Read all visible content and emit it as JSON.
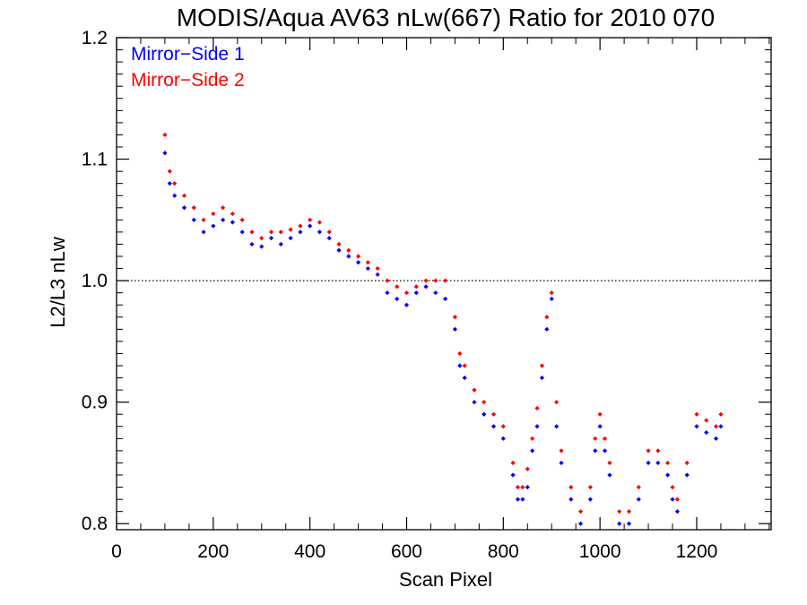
{
  "chart_data": {
    "type": "scatter",
    "title": "MODIS/Aqua AV63 nLw(667) Ratio for 2010 070",
    "xlabel": "Scan Pixel",
    "ylabel": "L2/L3 nLw",
    "xlim": [
      0,
      1354
    ],
    "ylim": [
      0.795,
      1.2
    ],
    "x_ticks": [
      "0",
      "200",
      "400",
      "600",
      "800",
      "1000",
      "1200"
    ],
    "x_tick_values": [
      0,
      200,
      400,
      600,
      800,
      1000,
      1200
    ],
    "y_ticks": [
      "0.8",
      "0.9",
      "1.0",
      "1.1",
      "1.2"
    ],
    "y_tick_values": [
      0.8,
      0.9,
      1.0,
      1.1,
      1.2
    ],
    "reference_line": 1.0,
    "legend_position": "top-left",
    "series": [
      {
        "name": "Mirror−Side 1",
        "color": "#0000ff",
        "x": [
          100,
          110,
          120,
          140,
          160,
          180,
          200,
          220,
          240,
          260,
          280,
          300,
          320,
          340,
          360,
          380,
          400,
          420,
          440,
          460,
          480,
          500,
          520,
          540,
          560,
          580,
          600,
          620,
          640,
          660,
          680,
          700,
          710,
          720,
          740,
          760,
          780,
          800,
          820,
          830,
          840,
          850,
          860,
          870,
          880,
          890,
          900,
          910,
          920,
          940,
          960,
          980,
          990,
          1000,
          1010,
          1020,
          1040,
          1060,
          1080,
          1100,
          1120,
          1140,
          1150,
          1160,
          1180,
          1200,
          1220,
          1240,
          1250
        ],
        "y": [
          1.105,
          1.08,
          1.07,
          1.06,
          1.05,
          1.04,
          1.045,
          1.05,
          1.048,
          1.04,
          1.03,
          1.028,
          1.035,
          1.03,
          1.035,
          1.04,
          1.045,
          1.04,
          1.035,
          1.025,
          1.02,
          1.015,
          1.01,
          1.005,
          0.99,
          0.985,
          0.98,
          0.99,
          0.995,
          0.99,
          0.985,
          0.96,
          0.93,
          0.92,
          0.9,
          0.89,
          0.88,
          0.87,
          0.84,
          0.82,
          0.82,
          0.83,
          0.86,
          0.88,
          0.92,
          0.96,
          0.985,
          0.88,
          0.85,
          0.82,
          0.8,
          0.82,
          0.86,
          0.88,
          0.86,
          0.84,
          0.8,
          0.8,
          0.82,
          0.85,
          0.85,
          0.84,
          0.82,
          0.81,
          0.84,
          0.88,
          0.875,
          0.87,
          0.88
        ]
      },
      {
        "name": "Mirror−Side 2",
        "color": "#ff0000",
        "x": [
          100,
          110,
          120,
          140,
          160,
          180,
          200,
          220,
          240,
          260,
          280,
          300,
          320,
          340,
          360,
          380,
          400,
          420,
          440,
          460,
          480,
          500,
          520,
          540,
          560,
          580,
          600,
          620,
          640,
          660,
          680,
          700,
          710,
          720,
          740,
          760,
          780,
          800,
          820,
          830,
          840,
          850,
          860,
          870,
          880,
          890,
          900,
          910,
          920,
          940,
          960,
          980,
          990,
          1000,
          1010,
          1020,
          1040,
          1060,
          1080,
          1100,
          1120,
          1140,
          1150,
          1160,
          1180,
          1200,
          1220,
          1240,
          1250
        ],
        "y": [
          1.12,
          1.09,
          1.08,
          1.07,
          1.06,
          1.05,
          1.055,
          1.06,
          1.055,
          1.05,
          1.04,
          1.035,
          1.04,
          1.04,
          1.042,
          1.045,
          1.05,
          1.048,
          1.04,
          1.03,
          1.025,
          1.02,
          1.015,
          1.01,
          1.0,
          0.995,
          0.99,
          0.995,
          1.0,
          1.0,
          1.0,
          0.97,
          0.94,
          0.93,
          0.91,
          0.9,
          0.89,
          0.88,
          0.85,
          0.83,
          0.83,
          0.845,
          0.87,
          0.895,
          0.93,
          0.97,
          0.99,
          0.9,
          0.86,
          0.83,
          0.81,
          0.83,
          0.87,
          0.89,
          0.87,
          0.85,
          0.81,
          0.81,
          0.83,
          0.86,
          0.86,
          0.85,
          0.83,
          0.82,
          0.85,
          0.89,
          0.885,
          0.88,
          0.89
        ]
      }
    ]
  }
}
